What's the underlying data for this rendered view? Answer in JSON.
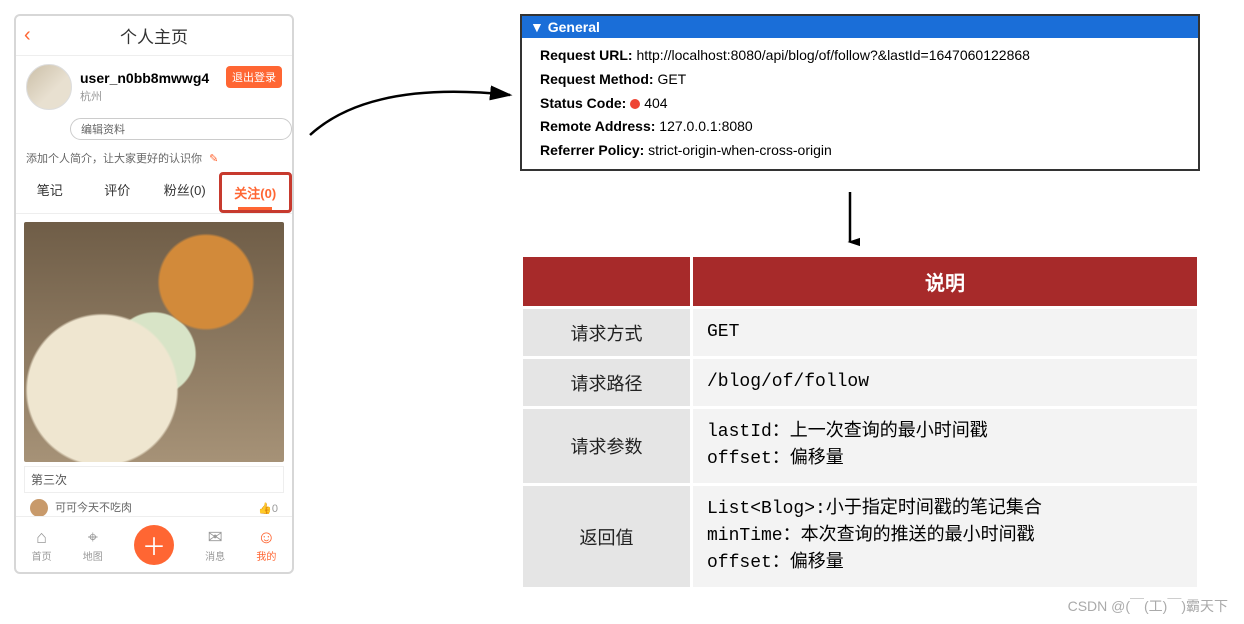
{
  "phone": {
    "title": "个人主页",
    "username": "user_n0bb8mwwg4",
    "city": "杭州",
    "logout": "退出登录",
    "edit_profile": "编辑资料",
    "bio_text": "添加个人简介，让大家更好的认识你",
    "bio_edit_icon": "✎",
    "tabs": {
      "notes": "笔记",
      "comments": "评价",
      "fans": "粉丝(0)",
      "follow": "关注(0)"
    },
    "post_caption": "第三次",
    "post_author": "可可今天不吃肉",
    "like_count": "0",
    "nav": {
      "home": "首页",
      "map": "地图",
      "msg": "消息",
      "me": "我的"
    }
  },
  "devtools": {
    "section": "General",
    "rows": {
      "url_k": "Request URL:",
      "url_v": "http://localhost:8080/api/blog/of/follow?&lastId=1647060122868",
      "method_k": "Request Method:",
      "method_v": "GET",
      "status_k": "Status Code:",
      "status_v": "404",
      "remote_k": "Remote Address:",
      "remote_v": "127.0.0.1:8080",
      "ref_k": "Referrer Policy:",
      "ref_v": "strict-origin-when-cross-origin"
    }
  },
  "api": {
    "header": "说明",
    "rows": [
      {
        "k": "请求方式",
        "v": "GET"
      },
      {
        "k": "请求路径",
        "v": "/blog/of/follow"
      },
      {
        "k": "请求参数",
        "v": "lastId：上一次查询的最小时间戳\noffset：偏移量"
      },
      {
        "k": "返回值",
        "v": "List<Blog>:小于指定时间戳的笔记集合\nminTime：本次查询的推送的最小时间戳\noffset：偏移量"
      }
    ]
  },
  "colors": {
    "accent": "#ff6633",
    "red_box": "#c73a2e",
    "devtools_blue": "#1a6ed8",
    "table_header": "#a72a2a",
    "table_key_bg": "#e5e5e5",
    "table_val_bg": "#f3f3f3"
  },
  "watermark": "CSDN @(￣(工)￣)霸天下"
}
